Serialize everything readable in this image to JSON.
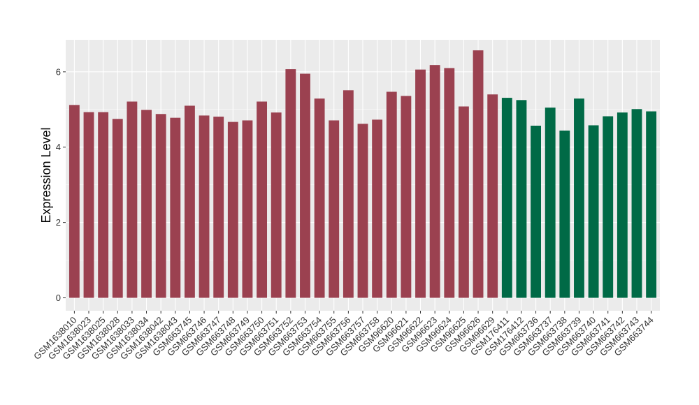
{
  "chart_data": {
    "type": "bar",
    "title": "",
    "xlabel": "",
    "ylabel": "Expression Level",
    "ylim": [
      0,
      6.85
    ],
    "yticks": [
      0,
      2,
      4,
      6
    ],
    "grid": true,
    "legend": "none",
    "colors": {
      "group_a": "#9b4150",
      "group_b": "#006a46",
      "panel": "#ebebeb",
      "grid": "#ffffff"
    },
    "categories": [
      "GSM1638010",
      "GSM1638023",
      "GSM1638025",
      "GSM1638028",
      "GSM1638033",
      "GSM1638034",
      "GSM1638042",
      "GSM1638043",
      "GSM663745",
      "GSM663746",
      "GSM663747",
      "GSM663748",
      "GSM663749",
      "GSM663750",
      "GSM663751",
      "GSM663752",
      "GSM663753",
      "GSM663754",
      "GSM663755",
      "GSM663756",
      "GSM663757",
      "GSM663758",
      "GSM96620",
      "GSM96621",
      "GSM96622",
      "GSM96623",
      "GSM96624",
      "GSM96625",
      "GSM96626",
      "GSM96629",
      "GSM176411",
      "GSM176412",
      "GSM663736",
      "GSM663737",
      "GSM663738",
      "GSM663739",
      "GSM663740",
      "GSM663741",
      "GSM663742",
      "GSM663743",
      "GSM663744"
    ],
    "values": [
      5.12,
      4.93,
      4.93,
      4.75,
      5.21,
      4.99,
      4.88,
      4.78,
      5.1,
      4.84,
      4.81,
      4.67,
      4.71,
      5.21,
      4.92,
      6.07,
      5.95,
      5.29,
      4.71,
      5.51,
      4.62,
      4.73,
      5.47,
      5.36,
      6.06,
      6.18,
      6.1,
      5.08,
      6.57,
      5.4,
      5.31,
      5.25,
      4.57,
      5.05,
      4.44,
      5.29,
      4.58,
      4.82,
      4.92,
      5.01,
      4.95
    ],
    "groups": [
      "a",
      "a",
      "a",
      "a",
      "a",
      "a",
      "a",
      "a",
      "a",
      "a",
      "a",
      "a",
      "a",
      "a",
      "a",
      "a",
      "a",
      "a",
      "a",
      "a",
      "a",
      "a",
      "a",
      "a",
      "a",
      "a",
      "a",
      "a",
      "a",
      "a",
      "b",
      "b",
      "b",
      "b",
      "b",
      "b",
      "b",
      "b",
      "b",
      "b",
      "b"
    ]
  }
}
